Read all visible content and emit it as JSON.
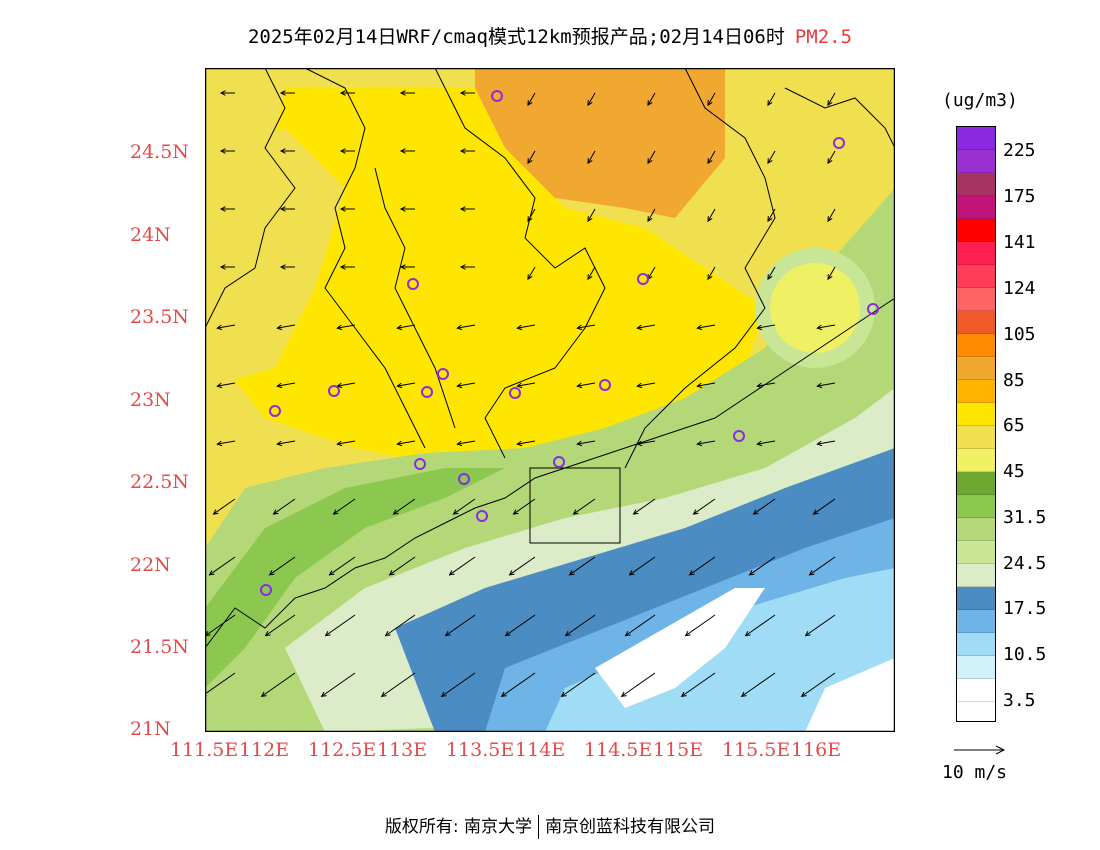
{
  "header": {
    "title": "2025年02月14日WRF/cmaq模式12km预报产品;02月14日06时",
    "variable": "PM2.5"
  },
  "map": {
    "lat_labels": [
      "24.5N",
      "24N",
      "23.5N",
      "23N",
      "22.5N",
      "22N",
      "21.5N",
      "21N"
    ],
    "lon_labels": [
      "111.5E",
      "112E",
      "112.5E",
      "113E",
      "113.5E",
      "114E",
      "114.5E",
      "115E",
      "115.5E",
      "116E"
    ],
    "lat_range": [
      21.0,
      25.0
    ],
    "lon_range": [
      111.5,
      116.5
    ],
    "station_marker_icon": "circle-marker-icon",
    "wind_vector_icon": "arrow-icon"
  },
  "legend": {
    "unit": "(ug/m3)",
    "colors": [
      "#8a2be2",
      "#9b30d0",
      "#a83262",
      "#c0147a",
      "#ff0000",
      "#ff1e50",
      "#ff3c5a",
      "#ff6464",
      "#f05a2a",
      "#ff8c00",
      "#f0a830",
      "#ffb400",
      "#ffe600",
      "#f0e050",
      "#f0f064",
      "#6ea832",
      "#8cc850",
      "#b4d878",
      "#c8e696",
      "#dcebc8",
      "#4b8cc3",
      "#6eb4e6",
      "#a0dcf5",
      "#d2f0fa",
      "#ffffff"
    ],
    "tick_labels": [
      "225",
      "175",
      "141",
      "124",
      "105",
      "85",
      "65",
      "45",
      "31.5",
      "24.5",
      "17.5",
      "10.5",
      "3.5"
    ]
  },
  "wind_key": {
    "label": "10 m/s"
  },
  "footer": {
    "copyright_left": "版权所有: 南京大学",
    "copyright_right": "南京创蓝科技有限公司"
  }
}
